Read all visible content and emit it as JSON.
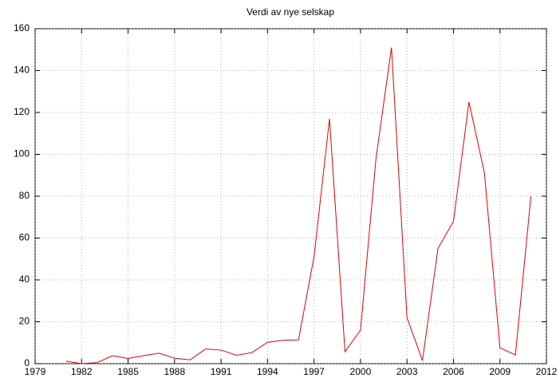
{
  "chart_data": {
    "type": "line",
    "title": "Verdi av nye selskap",
    "x": [
      1981,
      1982,
      1983,
      1984,
      1985,
      1986,
      1987,
      1988,
      1989,
      1990,
      1991,
      1992,
      1993,
      1994,
      1995,
      1996,
      1997,
      1998,
      1999,
      2000,
      2001,
      2002,
      2003,
      2004,
      2005,
      2006,
      2007,
      2008,
      2009,
      2010,
      2011
    ],
    "series": [
      {
        "color": "#e00000",
        "values": [
          1.2,
          0,
          0.5,
          3.8,
          2.5,
          3.8,
          5,
          2.6,
          1.8,
          7,
          6.5,
          4,
          5.3,
          10.2,
          11.2,
          11.4,
          51,
          117,
          5.7,
          16,
          98,
          151,
          22,
          1.5,
          55,
          68,
          125,
          91,
          7.5,
          4.2,
          80
        ]
      }
    ],
    "xlim": [
      1979,
      2012
    ],
    "xticks": [
      1979,
      1982,
      1985,
      1988,
      1991,
      1994,
      1997,
      2000,
      2003,
      2006,
      2009,
      2012
    ],
    "ylim": [
      0,
      160
    ],
    "yticks": [
      0,
      20,
      40,
      60,
      80,
      100,
      120,
      140,
      160
    ],
    "grid": true
  }
}
